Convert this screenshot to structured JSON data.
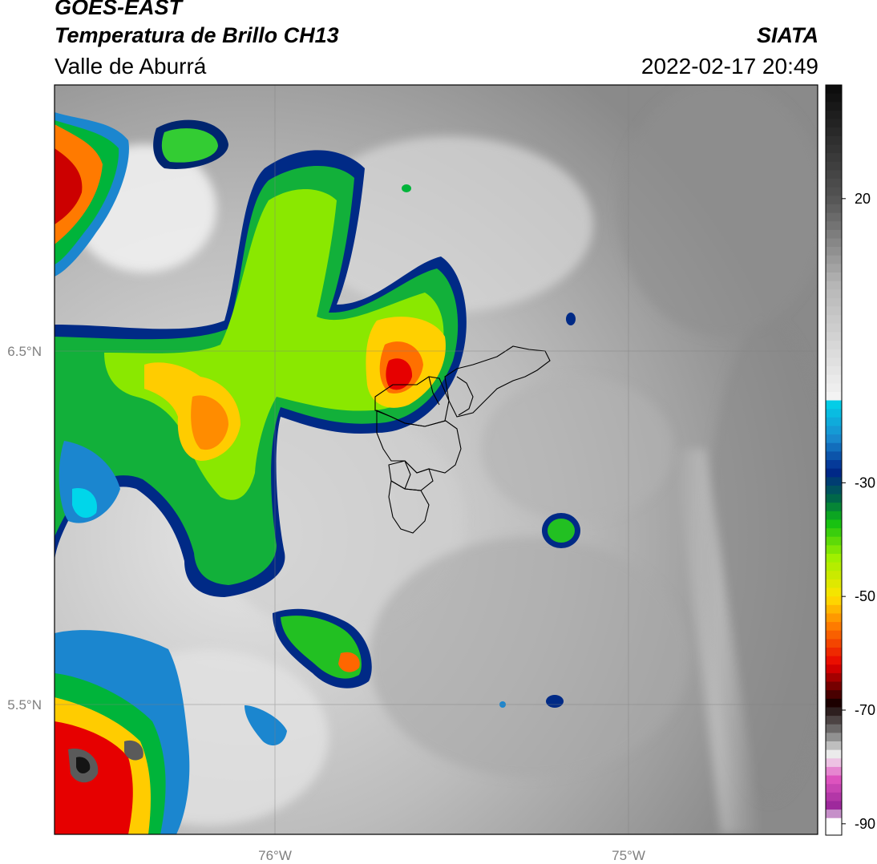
{
  "header": {
    "satellite": "GOES-EAST",
    "product": "Temperatura de Brillo CH13",
    "region": "Valle de Aburrá",
    "agency": "SIATA",
    "datetime": "2022-02-17 20:49"
  },
  "map": {
    "lat_ticks": [
      "6.5°N",
      "5.5°N"
    ],
    "lon_ticks": [
      "76°W",
      "75°W"
    ]
  },
  "colorbar": {
    "ticks": [
      "20",
      "-30",
      "-50",
      "-70",
      "-90"
    ],
    "tick_values": [
      20,
      -30,
      -50,
      -70,
      -90
    ],
    "range": [
      -92,
      40
    ],
    "stops": [
      {
        "v": 40,
        "c": "#0a0a0a"
      },
      {
        "v": 20,
        "c": "#555555"
      },
      {
        "v": 5,
        "c": "#b5b5b5"
      },
      {
        "v": -15,
        "c": "#f4f4f4"
      },
      {
        "v": -15.5,
        "c": "#00d6ea"
      },
      {
        "v": -22,
        "c": "#1a8cd0"
      },
      {
        "v": -28,
        "c": "#00248a"
      },
      {
        "v": -33,
        "c": "#006a46"
      },
      {
        "v": -37,
        "c": "#12c012"
      },
      {
        "v": -43,
        "c": "#9cf000"
      },
      {
        "v": -50,
        "c": "#ffe400"
      },
      {
        "v": -55,
        "c": "#ff8000"
      },
      {
        "v": -62,
        "c": "#e80000"
      },
      {
        "v": -69,
        "c": "#140000"
      },
      {
        "v": -74,
        "c": "#7a7a7a"
      },
      {
        "v": -78,
        "c": "#f3f3f3"
      },
      {
        "v": -82,
        "c": "#e055c0"
      },
      {
        "v": -88,
        "c": "#8c1e92"
      },
      {
        "v": -88.5,
        "c": "#ffffff"
      },
      {
        "v": -92,
        "c": "#ffffff"
      }
    ]
  }
}
